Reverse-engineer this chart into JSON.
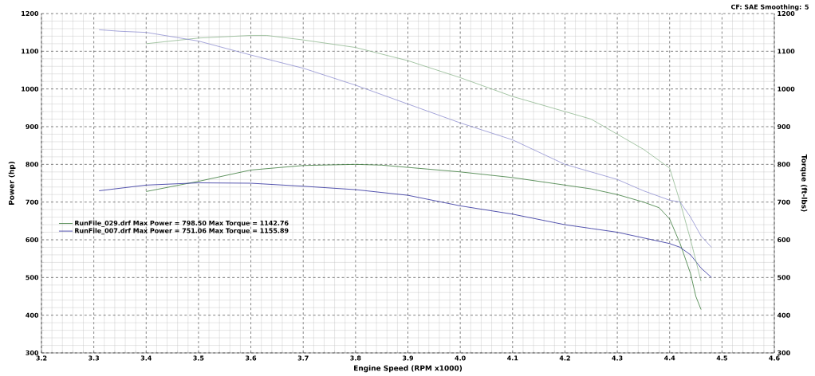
{
  "chart_data": {
    "type": "line",
    "xlabel": "Engine Speed (RPM x1000)",
    "ylabel": "Power (hp)",
    "y2label": "Torque (ft-lbs)",
    "annotations": [
      "CF: SAE  Smoothing: 5"
    ],
    "xlim": [
      3.2,
      4.6
    ],
    "xticks": [
      3.2,
      3.3,
      3.4,
      3.5,
      3.6,
      3.7,
      3.8,
      3.9,
      {
        "value": 4,
        "label": "4.0"
      },
      4.1,
      4.2,
      4.3,
      4.4,
      4.5,
      4.6
    ],
    "ylim": [
      300,
      1200
    ],
    "yticks": [
      300,
      400,
      500,
      600,
      700,
      800,
      900,
      1000,
      1100,
      1200
    ],
    "y2lim": [
      300,
      1200
    ],
    "y2ticks": [
      300,
      400,
      500,
      600,
      700,
      800,
      900,
      1000,
      1100,
      1200
    ],
    "grid": true,
    "legend": "left",
    "line_style": "solid",
    "series": [
      {
        "name": "RunFile_029.drf Max Power = 798.50     Max Torque = 1142.76",
        "color": "#3a7a3a",
        "x": [
          3.4,
          3.5,
          3.6,
          3.7,
          3.8,
          3.85,
          3.9,
          4.0,
          4.1,
          4.2,
          4.25,
          4.3,
          4.35,
          4.38,
          4.4,
          4.42,
          4.44,
          4.45,
          4.46
        ],
        "values": [
          728,
          755,
          785,
          797,
          800,
          798,
          792,
          780,
          765,
          745,
          735,
          720,
          700,
          685,
          655,
          590,
          510,
          450,
          415
        ]
      },
      {
        "name": "RunFile_007.drf Max Power = 751.06     Max Torque = 1155.89",
        "color": "#2a2a9a",
        "x": [
          3.31,
          3.4,
          3.5,
          3.6,
          3.7,
          3.8,
          3.9,
          4.0,
          4.1,
          4.2,
          4.25,
          4.3,
          4.35,
          4.4,
          4.42,
          4.44,
          4.46,
          4.48
        ],
        "values": [
          730,
          745,
          751,
          750,
          742,
          733,
          718,
          690,
          668,
          640,
          630,
          620,
          605,
          590,
          580,
          560,
          525,
          500
        ]
      },
      {
        "color": "#8fb88f",
        "axis": "y2",
        "x": [
          3.4,
          3.5,
          3.6,
          3.63,
          3.7,
          3.8,
          3.9,
          4.0,
          4.1,
          4.2,
          4.25,
          4.3,
          4.35,
          4.38,
          4.4,
          4.42,
          4.44,
          4.46
        ],
        "values": [
          1120,
          1135,
          1142,
          1142,
          1130,
          1110,
          1075,
          1030,
          980,
          940,
          920,
          880,
          840,
          810,
          790,
          700,
          600,
          490
        ]
      },
      {
        "color": "#8f8fd0",
        "axis": "y2",
        "x": [
          3.31,
          3.35,
          3.4,
          3.5,
          3.6,
          3.7,
          3.8,
          3.9,
          4.0,
          4.1,
          4.2,
          4.3,
          4.35,
          4.4,
          4.42,
          4.44,
          4.46,
          4.48
        ],
        "values": [
          1157,
          1153,
          1150,
          1127,
          1090,
          1055,
          1010,
          960,
          910,
          865,
          800,
          760,
          730,
          705,
          700,
          660,
          610,
          580
        ]
      }
    ]
  }
}
